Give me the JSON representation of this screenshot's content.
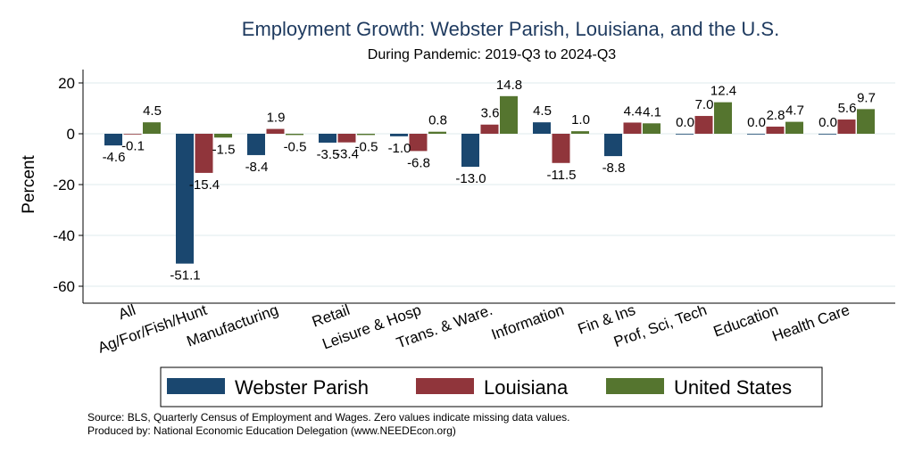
{
  "chart_data": {
    "type": "bar",
    "title": "Employment Growth: Webster Parish, Louisiana, and the U.S.",
    "subtitle": "During Pandemic: 2019-Q3 to 2024-Q3",
    "xlabel": "",
    "ylabel": "Percent",
    "ylim": [
      -65,
      26
    ],
    "yticks": [
      20,
      0,
      -20,
      -40,
      -60
    ],
    "grid": true,
    "legend_position": "bottom",
    "categories": [
      "All",
      "Ag/For/Fish/Hunt",
      "Manufacturing",
      "Retail",
      "Leisure & Hosp",
      "Trans. & Ware.",
      "Information",
      "Fin & Ins",
      "Prof, Sci, Tech",
      "Education",
      "Health Care"
    ],
    "series": [
      {
        "name": "Webster Parish",
        "color": "#1a476f",
        "values": [
          -4.6,
          -51.1,
          -8.4,
          -3.5,
          -1.0,
          -13.0,
          4.5,
          -8.8,
          0.0,
          0.0,
          0.0
        ]
      },
      {
        "name": "Louisiana",
        "color": "#90353b",
        "values": [
          -0.1,
          -15.4,
          1.9,
          -3.4,
          -6.8,
          3.6,
          -11.5,
          4.4,
          7.0,
          2.8,
          5.6
        ]
      },
      {
        "name": "United States",
        "color": "#55752f",
        "values": [
          4.5,
          -1.5,
          -0.5,
          -0.5,
          0.8,
          14.8,
          1.0,
          4.1,
          12.4,
          4.7,
          9.7
        ]
      }
    ],
    "notes": [
      "Source: BLS, Quarterly Census of Employment and Wages. Zero values indicate missing data values.",
      "Produced by: National Economic Education Delegation (www.NEEDEcon.org)"
    ]
  }
}
